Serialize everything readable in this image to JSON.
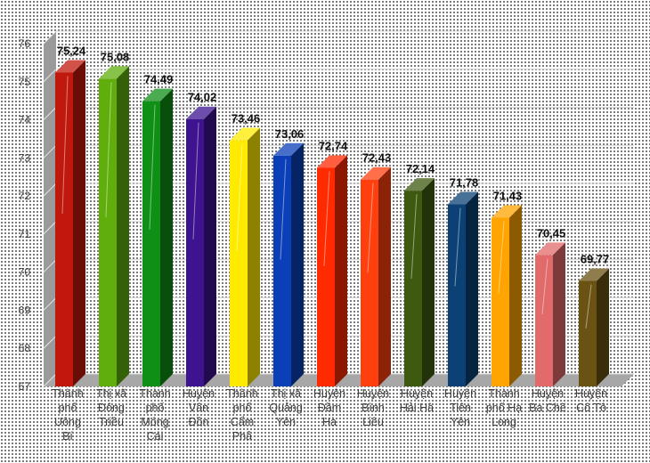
{
  "chart_data": {
    "type": "bar",
    "style": "3d-column",
    "categories": [
      [
        "Thành",
        "phố",
        "Uông",
        "Bí"
      ],
      [
        "Thị xã",
        "Đông",
        "Triều"
      ],
      [
        "Thành",
        "phố",
        "Móng",
        "Cái"
      ],
      [
        "Huyện",
        "Vân",
        "Đồn"
      ],
      [
        "Thành",
        "phố",
        "Cẩm",
        "Phả"
      ],
      [
        "Thị xã",
        "Quảng",
        "Yên"
      ],
      [
        "Huyện",
        "Đầm",
        "Hà"
      ],
      [
        "Huyện",
        "Bình",
        "Liêu"
      ],
      [
        "Huyện",
        "Hải Hà"
      ],
      [
        "Huyện",
        "Tiên",
        "Yên"
      ],
      [
        "Thành",
        "phố Hạ",
        "Long"
      ],
      [
        "Huyện",
        "Ba Chẽ"
      ],
      [
        "Huyện",
        "Cô Tô"
      ]
    ],
    "values": [
      75.24,
      75.08,
      74.49,
      74.02,
      73.46,
      73.06,
      72.74,
      72.43,
      72.14,
      71.78,
      71.43,
      70.45,
      69.77
    ],
    "data_labels": [
      "75,24",
      "75,08",
      "74,49",
      "74,02",
      "73,46",
      "73,06",
      "72,74",
      "72,43",
      "72,14",
      "71,78",
      "71,43",
      "70,45",
      "69,77"
    ],
    "colors": [
      "#c0180c",
      "#5fae0c",
      "#0f8f16",
      "#3d1390",
      "#ffeb00",
      "#0a3fb8",
      "#ff2a00",
      "#ff3f0e",
      "#3d5a10",
      "#0b4175",
      "#ffa400",
      "#e26a6a",
      "#6a5212"
    ],
    "ylim": [
      67,
      76
    ],
    "yticks": [
      "67",
      "68",
      "69",
      "70",
      "71",
      "72",
      "73",
      "74",
      "75",
      "76"
    ],
    "grid": true,
    "legend": "none"
  }
}
